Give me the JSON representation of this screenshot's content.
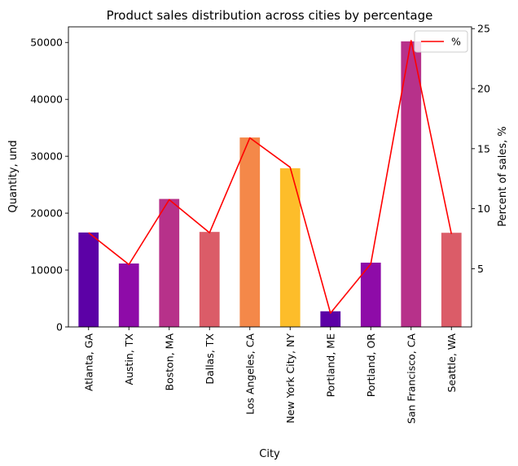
{
  "chart_data": {
    "type": "bar",
    "title": "Product sales distribution across cities by percentage",
    "xlabel": "City",
    "ylabel": "Quantity, und",
    "y2label": "Percent of sales, %",
    "categories": [
      "Atlanta,  GA",
      "Austin,  TX",
      "Boston,  MA",
      "Dallas,  TX",
      "Los Angeles,  CA",
      "New York City,  NY",
      "Portland,  ME",
      "Portland,  OR",
      "San Francisco,  CA",
      "Seattle,  WA"
    ],
    "series": [
      {
        "axis": "left",
        "kind": "bar",
        "values": [
          16600,
          11150,
          22500,
          16700,
          33300,
          27900,
          2750,
          11300,
          50200,
          16550
        ],
        "colors": [
          "#5c01a6",
          "#8e0ba8",
          "#b7318a",
          "#db5c68",
          "#f48849",
          "#fdbd2a",
          "#5c01a6",
          "#8e0ba8",
          "#b7318a",
          "#db5c68"
        ]
      },
      {
        "axis": "right",
        "kind": "line",
        "name": "%",
        "color": "#ff0000",
        "values": [
          8.0,
          5.35,
          10.75,
          8.0,
          15.9,
          13.45,
          1.3,
          5.4,
          24.0,
          7.9
        ]
      }
    ],
    "ylim": [
      0,
      52750
    ],
    "y2lim": [
      0.15,
      25.15
    ],
    "yticks": [
      0,
      10000,
      20000,
      30000,
      40000,
      50000
    ],
    "y2ticks": [
      5,
      10,
      15,
      20,
      25
    ],
    "legend": {
      "position": "top-right",
      "entries": [
        "%"
      ]
    },
    "grid": false
  }
}
